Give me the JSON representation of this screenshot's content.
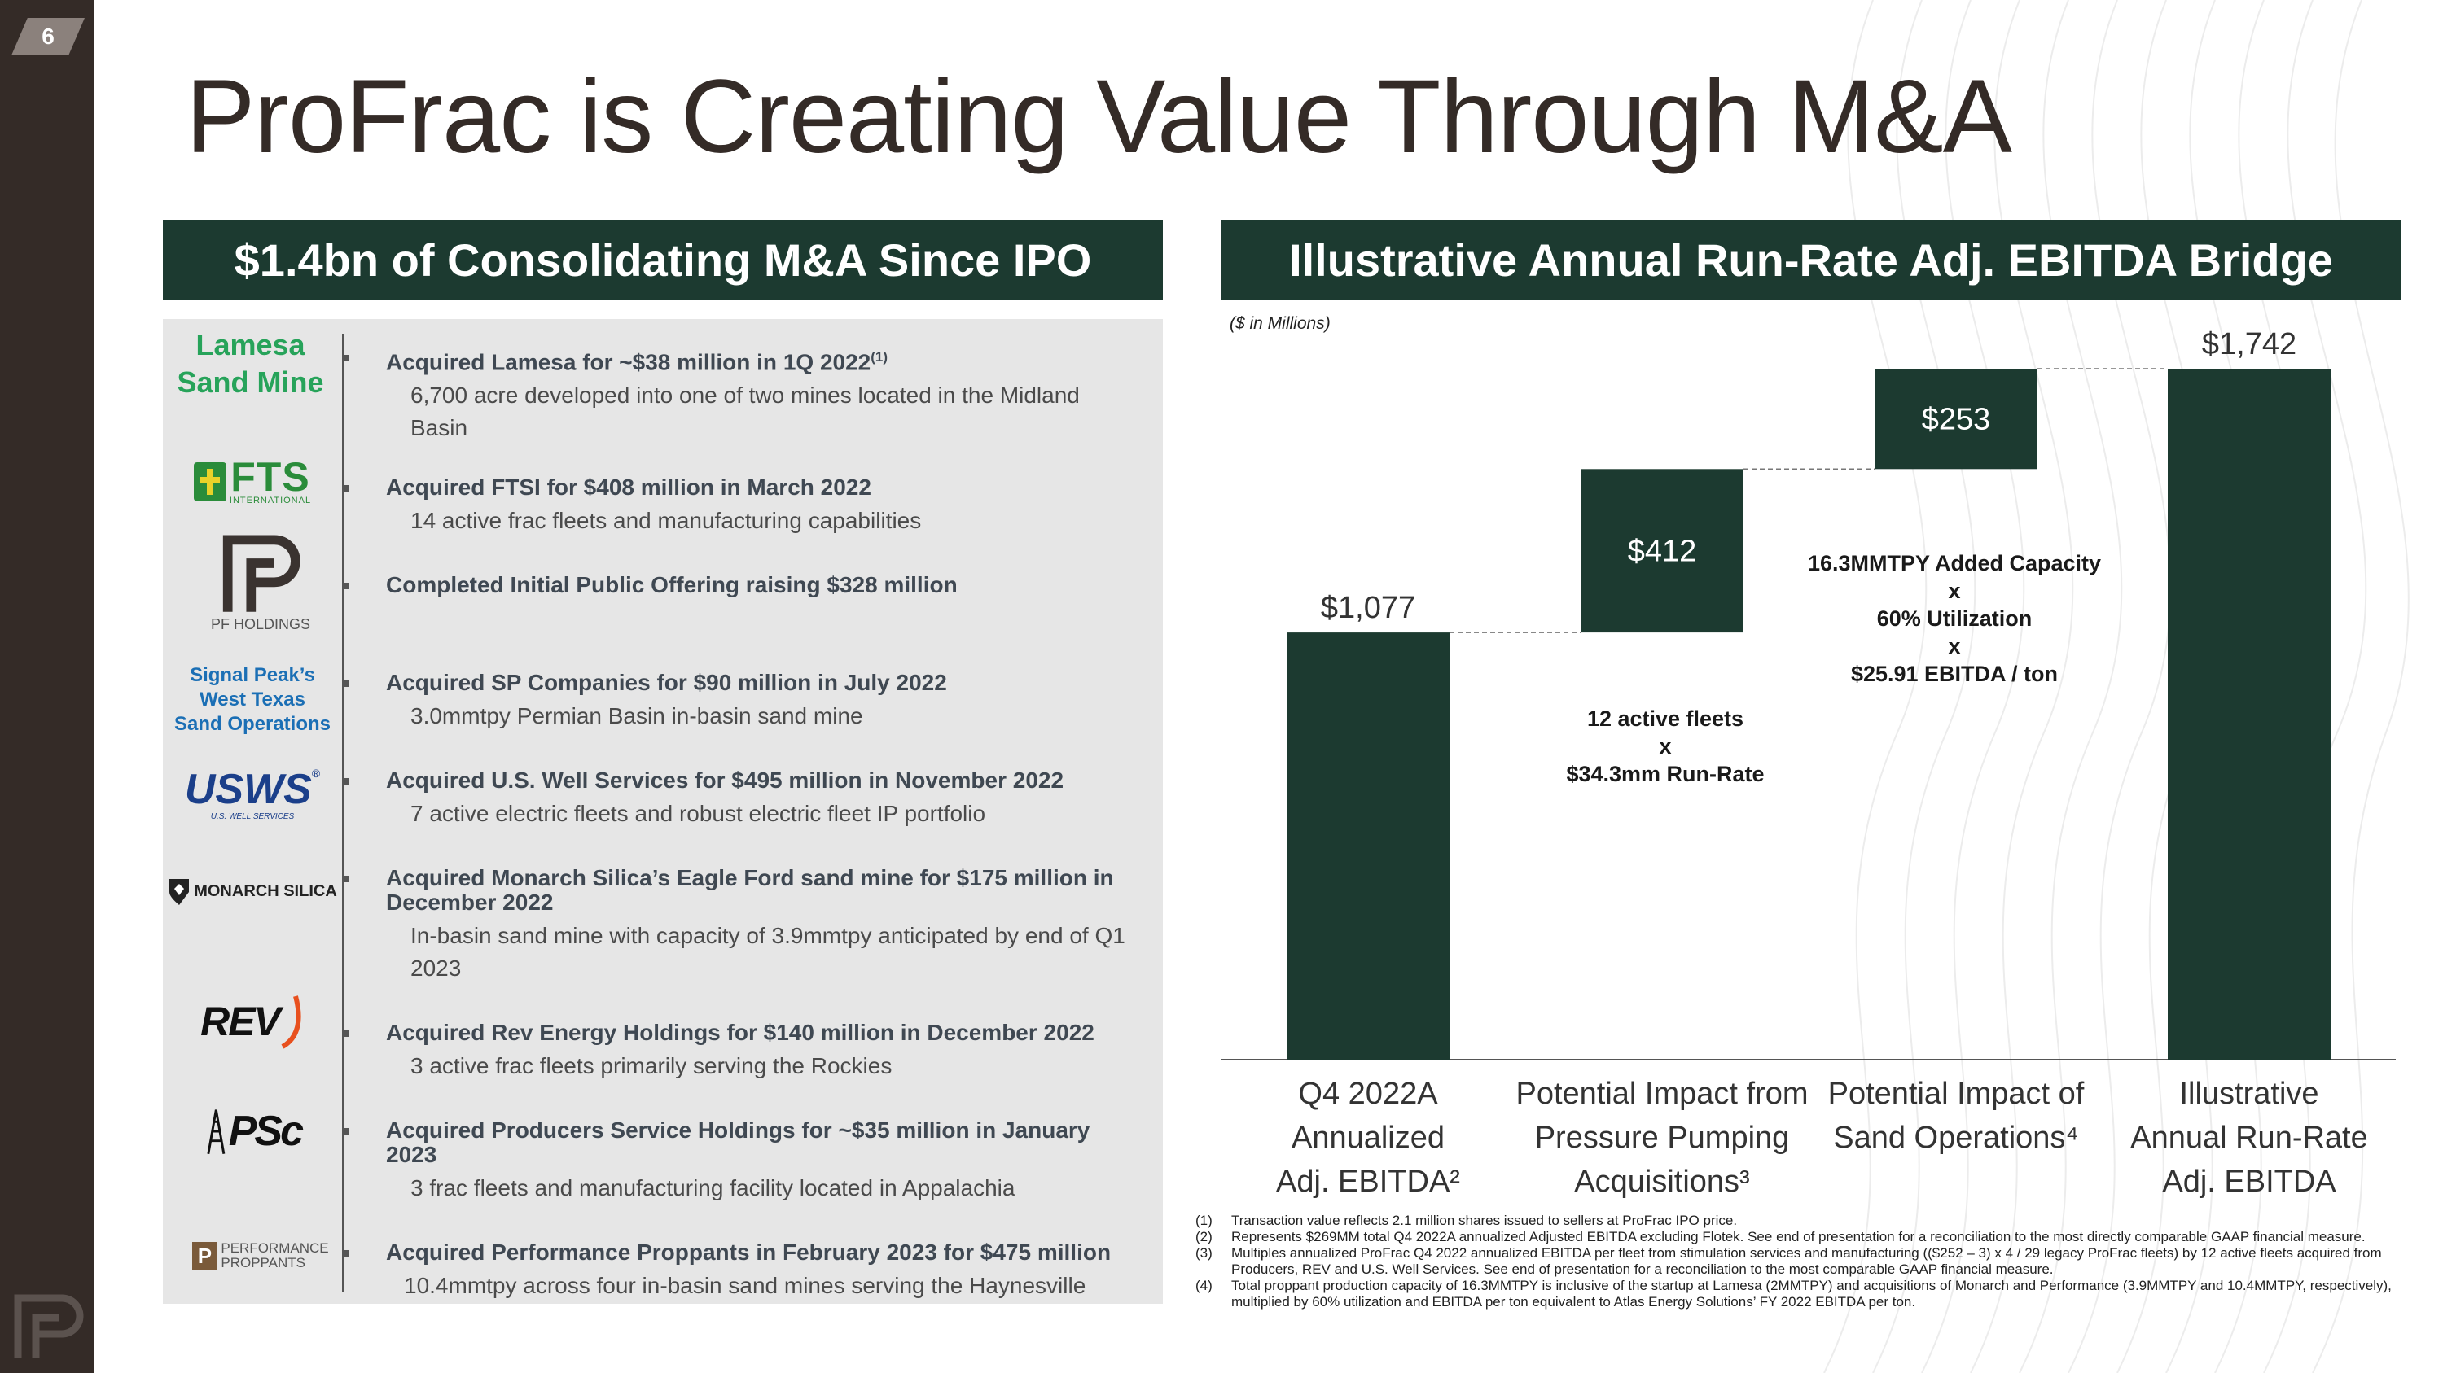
{
  "page_number": "6",
  "title": "ProFrac is Creating Value Through M&A",
  "left_banner": "$1.4bn of Consolidating M&A Since IPO",
  "right_banner": "Illustrative Annual Run-Rate Adj. EBITDA Bridge",
  "units_note": "($ in Millions)",
  "logos": {
    "lamesa": [
      "Lamesa",
      "Sand Mine"
    ],
    "fts": {
      "mark": "FTS",
      "sub": "INTERNATIONAL"
    },
    "pf": "PF HOLDINGS",
    "signal": [
      "Signal Peak’s",
      "West Texas",
      "Sand Operations"
    ],
    "usws": {
      "mark": "USWS",
      "reg": "®",
      "sub": "U.S. WELL SERVICES"
    },
    "monarch": "MONARCH SILICA",
    "rev": "REV",
    "psc": "PSc",
    "performance": [
      "PERFORMANCE",
      "PROPPANTS"
    ]
  },
  "timeline": [
    {
      "headline": "Acquired Lamesa for ~$38 million in 1Q 2022",
      "sup": "(1)",
      "desc": "6,700 acre developed into one of two mines located in the Midland Basin"
    },
    {
      "headline": "Acquired FTSI for $408 million in March 2022",
      "sup": "",
      "desc": "14 active frac fleets and manufacturing capabilities"
    },
    {
      "headline": "Completed Initial Public Offering raising $328 million",
      "sup": "",
      "desc": ""
    },
    {
      "headline": "Acquired SP Companies for $90 million in July 2022",
      "sup": "",
      "desc": "3.0mmtpy Permian Basin in-basin sand mine"
    },
    {
      "headline": "Acquired U.S. Well Services for $495 million in November 2022",
      "sup": "",
      "desc": "7 active electric fleets and robust electric fleet IP portfolio"
    },
    {
      "headline": "Acquired Monarch Silica’s Eagle Ford sand mine for $175 million in December 2022",
      "sup": "",
      "desc": "In-basin sand mine with capacity of 3.9mmtpy anticipated by end of Q1 2023"
    },
    {
      "headline": "Acquired Rev Energy Holdings for $140 million in December 2022",
      "sup": "",
      "desc": "3 active frac fleets primarily serving the Rockies"
    },
    {
      "headline": "Acquired Producers Service Holdings for ~$35 million in January 2023",
      "sup": "",
      "desc": "3 frac fleets and manufacturing facility located in Appalachia"
    },
    {
      "headline": "Acquired Performance Proppants in February 2023 for $475 million",
      "sup": "",
      "desc": "10.4mmtpy across four in-basin sand mines serving the Haynesville"
    }
  ],
  "chart_data": {
    "type": "bar",
    "subtype": "waterfall",
    "title": "Illustrative Annual Run-Rate Adj. EBITDA Bridge",
    "units": "($ in Millions)",
    "categories": [
      [
        "Q4 2022A",
        "Annualized",
        "Adj. EBITDA²"
      ],
      [
        "Potential Impact from",
        "Pressure Pumping",
        "Acquisitions³"
      ],
      [
        "Potential Impact of",
        "Sand Operations⁴"
      ],
      [
        "Illustrative",
        "Annual Run-Rate",
        "Adj. EBITDA"
      ]
    ],
    "values": [
      1077,
      412,
      253,
      1742
    ],
    "bar_base": [
      0,
      1077,
      1489,
      0
    ],
    "bar_kind": [
      "total",
      "increment",
      "increment",
      "total"
    ],
    "data_labels": [
      "$1,077",
      "$412",
      "$253",
      "$1,742"
    ],
    "ylim": [
      0,
      1742
    ],
    "color": "#1c3a30",
    "annotations": [
      [
        "12 active fleets",
        "x",
        "$34.3mm Run-Rate"
      ],
      [
        "16.3MMTPY Added Capacity",
        "x",
        "60% Utilization",
        "x",
        "$25.91 EBITDA / ton"
      ]
    ]
  },
  "footnotes": [
    {
      "num": "(1)",
      "text": "Transaction value reflects 2.1 million shares issued to sellers at ProFrac IPO price."
    },
    {
      "num": "(2)",
      "text": "Represents $269MM total Q4 2022A annualized Adjusted EBITDA excluding Flotek.  See end of presentation for a reconciliation to the most directly comparable GAAP financial measure."
    },
    {
      "num": "(3)",
      "text": "Multiples annualized ProFrac Q4 2022 annualized EBITDA per fleet from stimulation services and manufacturing (($252 – 3) x 4 / 29 legacy ProFrac fleets) by 12 active fleets acquired from Producers, REV and U.S. Well Services.  See end of presentation for a reconciliation to the most comparable GAAP financial measure."
    },
    {
      "num": "(4)",
      "text": "Total proppant production capacity of 16.3MMTPY is inclusive of the startup at Lamesa (2MMTPY) and acquisitions of Monarch and Performance (3.9MMTPY and 10.4MMTPY, respectively), multiplied by 60% utilization and EBITDA per ton equivalent to Atlas Energy Solutions’ FY 2022 EBITDA per ton."
    }
  ]
}
